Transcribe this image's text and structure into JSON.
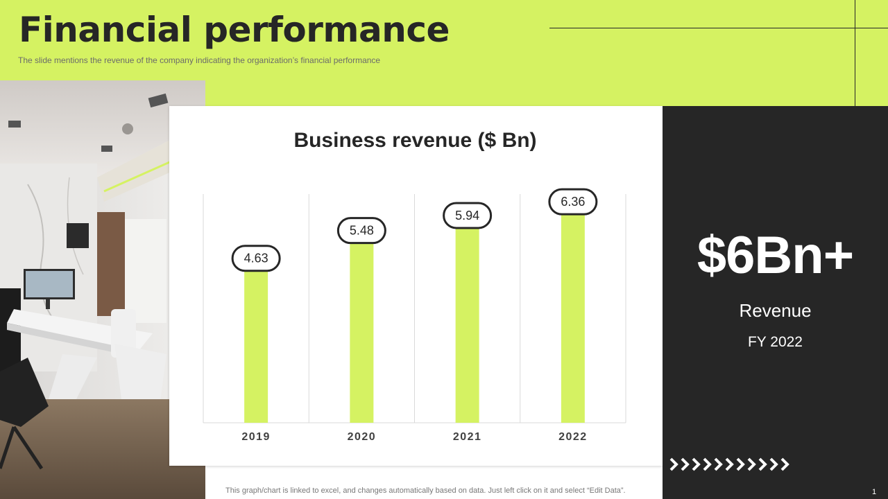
{
  "slide": {
    "title": "Financial performance",
    "subtitle": "The slide mentions the revenue  of the company indicating the organization’s financial performance",
    "footer_note": "This graph/chart is linked to excel,  and changes automatically based on data. Just left click on it and select “Edit Data”.",
    "page_number": "1"
  },
  "highlight": {
    "value": "$6Bn+",
    "label": "Revenue",
    "period": "FY 2022"
  },
  "colors": {
    "accent": "#d5f262",
    "bar": "#d5f262",
    "dark": "#262626"
  },
  "icons": [
    "office-photo",
    "chevron-right-icon"
  ],
  "chart_data": {
    "type": "bar",
    "title": "Business revenue ($ Bn)",
    "categories": [
      "2019",
      "2020",
      "2021",
      "2022"
    ],
    "values": [
      4.63,
      5.48,
      5.94,
      6.36
    ],
    "data_labels": [
      "4.63",
      "5.48",
      "5.94",
      "6.36"
    ],
    "xlabel": "",
    "ylabel": "",
    "ylim": [
      0,
      7
    ],
    "grid": "vertical",
    "legend": "none"
  }
}
